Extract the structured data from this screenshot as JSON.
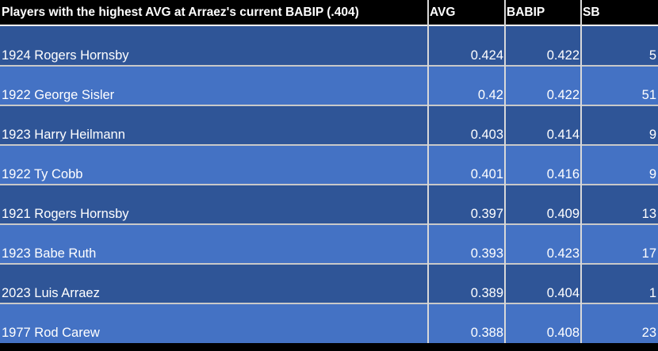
{
  "table": {
    "header": [
      "Players with the highest AVG at Arraez's current BABIP (.404)",
      "AVG",
      "BABIP",
      "SB"
    ],
    "rows": [
      [
        "1924 Rogers Hornsby",
        0.424,
        0.422,
        5
      ],
      [
        "1922 George Sisler",
        0.42,
        0.422,
        51
      ],
      [
        "1923 Harry Heilmann",
        0.403,
        0.414,
        9
      ],
      [
        "1922 Ty Cobb",
        0.401,
        0.416,
        9
      ],
      [
        "1921 Rogers Hornsby",
        0.397,
        0.409,
        13
      ],
      [
        "1923 Babe Ruth",
        0.393,
        0.423,
        17
      ],
      [
        "2023 Luis Arraez",
        0.389,
        0.404,
        1
      ],
      [
        "1977 Rod Carew",
        0.388,
        0.408,
        23
      ]
    ]
  }
}
